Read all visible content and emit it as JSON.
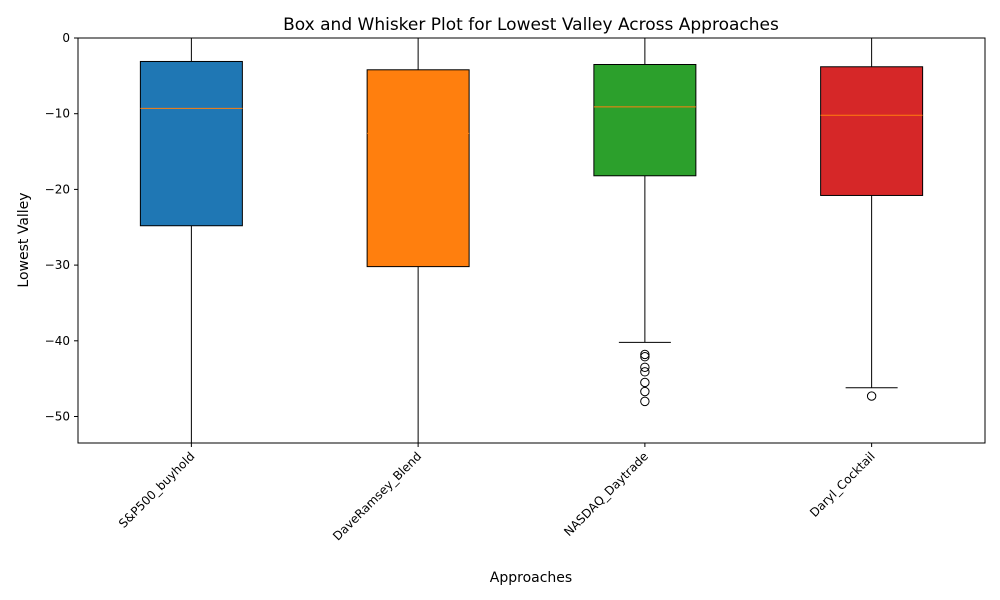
{
  "chart_data": {
    "type": "box",
    "title": "Box and Whisker Plot for Lowest Valley Across Approaches",
    "xlabel": "Approaches",
    "ylabel": "Lowest Valley",
    "ylim": [
      -53.5,
      0
    ],
    "yticks": [
      0,
      -10,
      -20,
      -30,
      -40,
      -50
    ],
    "ytick_labels": [
      "0",
      "−10",
      "−20",
      "−30",
      "−40",
      "−50"
    ],
    "grid": false,
    "series": [
      {
        "name": "S&P500_buyhold",
        "color": "#1f77b4",
        "whisker_low": -53.5,
        "q1": -24.8,
        "median": -9.3,
        "q3": -3.1,
        "whisker_high": 0,
        "outliers": []
      },
      {
        "name": "DaveRamsey_Blend",
        "color": "#ff7f0e",
        "whisker_low": -53.5,
        "q1": -30.2,
        "median": -12.6,
        "q3": -4.2,
        "whisker_high": 0,
        "outliers": []
      },
      {
        "name": "NASDAQ_Daytrade",
        "color": "#2ca02c",
        "whisker_low": -40.2,
        "q1": -18.2,
        "median": -9.1,
        "q3": -3.5,
        "whisker_high": 0,
        "outliers": [
          -41.8,
          -42.1,
          -43.5,
          -44.1,
          -45.5,
          -46.7,
          -48.0
        ]
      },
      {
        "name": "Daryl_Cocktail",
        "color": "#d62728",
        "whisker_low": -46.2,
        "q1": -20.8,
        "median": -10.2,
        "q3": -3.8,
        "whisker_high": 0,
        "outliers": [
          -47.3
        ]
      }
    ]
  }
}
